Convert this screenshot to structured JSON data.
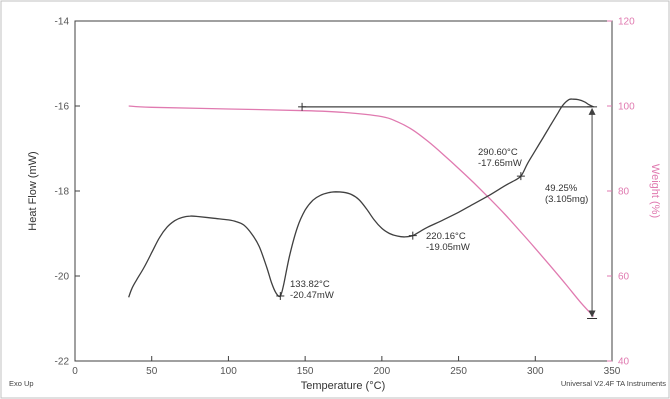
{
  "chart_data": {
    "type": "line",
    "xlabel": "Temperature (°C)",
    "ylabel": "Heat Flow (mW)",
    "y2label": "Weight (%)",
    "xlim": [
      0,
      350
    ],
    "ylim": [
      -22,
      -14
    ],
    "y2lim": [
      40,
      120
    ],
    "x_ticks": [
      0,
      50,
      100,
      150,
      200,
      250,
      300,
      350
    ],
    "y_ticks": [
      -22,
      -20,
      -18,
      -16,
      -14
    ],
    "y2_ticks": [
      40,
      60,
      80,
      100,
      120
    ],
    "grid": false,
    "colors": {
      "heat_flow": "#404040",
      "weight": "#e07ab0",
      "axis_right": "#e07ab0"
    },
    "series": [
      {
        "axis": "left",
        "x": [
          35,
          37,
          40,
          45,
          50,
          55,
          60,
          65,
          70,
          75,
          80,
          90,
          100,
          105,
          110,
          115,
          120,
          125,
          128,
          131,
          133.82,
          136,
          140,
          145,
          150,
          155,
          160,
          165,
          170,
          175,
          180,
          185,
          190,
          195,
          200,
          205,
          210,
          215,
          220.16,
          225,
          230,
          240,
          250,
          260,
          270,
          280,
          285,
          290.6,
          295,
          300,
          305,
          310,
          315,
          318,
          322,
          325,
          328,
          332,
          335,
          338
        ],
        "y": [
          -20.5,
          -20.3,
          -20.1,
          -19.8,
          -19.45,
          -19.1,
          -18.85,
          -18.7,
          -18.62,
          -18.59,
          -18.6,
          -18.64,
          -18.68,
          -18.72,
          -18.8,
          -19.0,
          -19.3,
          -19.8,
          -20.15,
          -20.4,
          -20.47,
          -20.2,
          -19.5,
          -18.85,
          -18.45,
          -18.22,
          -18.1,
          -18.04,
          -18.02,
          -18.03,
          -18.08,
          -18.2,
          -18.42,
          -18.68,
          -18.88,
          -19.0,
          -19.06,
          -19.08,
          -19.05,
          -18.95,
          -18.85,
          -18.68,
          -18.5,
          -18.3,
          -18.1,
          -17.88,
          -17.78,
          -17.65,
          -17.35,
          -17.05,
          -16.75,
          -16.45,
          -16.15,
          -15.98,
          -15.85,
          -15.84,
          -15.85,
          -15.9,
          -15.97,
          -16.02
        ]
      },
      {
        "axis": "right",
        "x": [
          35,
          50,
          100,
          150,
          175,
          200,
          210,
          220,
          230,
          240,
          250,
          260,
          270,
          280,
          290,
          300,
          310,
          320,
          330,
          338
        ],
        "y": [
          100,
          99.7,
          99.3,
          98.9,
          98.5,
          97.5,
          96.3,
          94.4,
          91.7,
          88.6,
          85.3,
          81.9,
          78.3,
          74.6,
          70.6,
          66.5,
          62.3,
          58.0,
          53.6,
          50.5
        ]
      }
    ],
    "markers": {
      "peak1": {
        "x": 133.82,
        "y": -20.47
      },
      "peak2": {
        "x": 220.16,
        "y": -19.05
      },
      "peak3": {
        "x": 290.6,
        "y": -17.65
      },
      "step_start": {
        "x": 148,
        "y": -16.02
      },
      "step_end": {
        "x": 337,
        "y": -16.02
      },
      "step_bottom": {
        "x": 337,
        "y": -21.0
      }
    },
    "annotations": {
      "peak1_temp": "133.82°C",
      "peak1_flow": "-20.47mW",
      "peak2_temp": "220.16°C",
      "peak2_flow": "-19.05mW",
      "peak3_temp": "290.60°C",
      "peak3_flow": "-17.65mW",
      "weight_loss": "49.25%",
      "weight_loss_mg": "(3.105mg)"
    },
    "footer_left": "Exo Up",
    "footer_right": "Universal V2.4F TA Instruments"
  }
}
